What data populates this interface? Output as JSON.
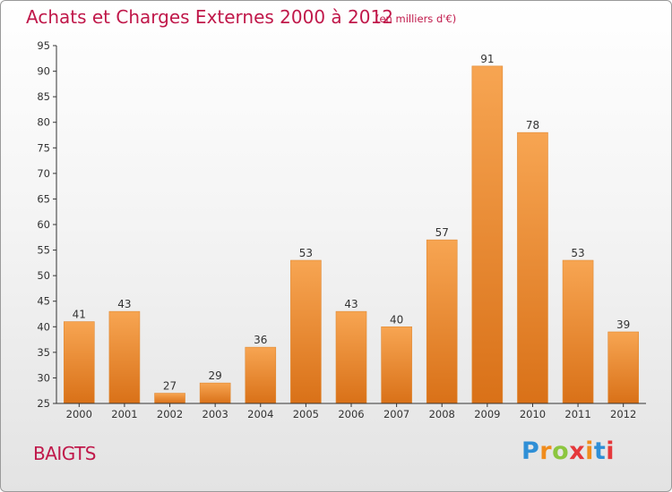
{
  "header": {
    "title": "Achats et Charges Externes 2000 à 2012",
    "unit": "(en milliers d'€)"
  },
  "place": "BAIGTS",
  "brand": {
    "letters": [
      "P",
      "r",
      "o",
      "x",
      "i",
      "t",
      "i"
    ],
    "colors": [
      "#2f8fd6",
      "#f08c1c",
      "#8cc63f",
      "#e5383b",
      "#f08c1c",
      "#2f8fd6",
      "#e5383b"
    ]
  },
  "colors": {
    "accent": "#c0184a",
    "bar_light": "#f7a552",
    "bar_dark": "#d97118",
    "axis": "#333333"
  },
  "chart_data": {
    "type": "bar",
    "title": "Achats et Charges Externes 2000 à 2012",
    "subtitle": "(en milliers d'€)",
    "categories": [
      "2000",
      "2001",
      "2002",
      "2003",
      "2004",
      "2005",
      "2006",
      "2007",
      "2008",
      "2009",
      "2010",
      "2011",
      "2012"
    ],
    "values": [
      41,
      43,
      27,
      29,
      36,
      53,
      43,
      40,
      57,
      91,
      78,
      53,
      39
    ],
    "ylim": [
      25,
      95
    ],
    "yticks": [
      25,
      30,
      35,
      40,
      45,
      50,
      55,
      60,
      65,
      70,
      75,
      80,
      85,
      90,
      95
    ],
    "grid": false,
    "xlabel": "",
    "ylabel": ""
  }
}
